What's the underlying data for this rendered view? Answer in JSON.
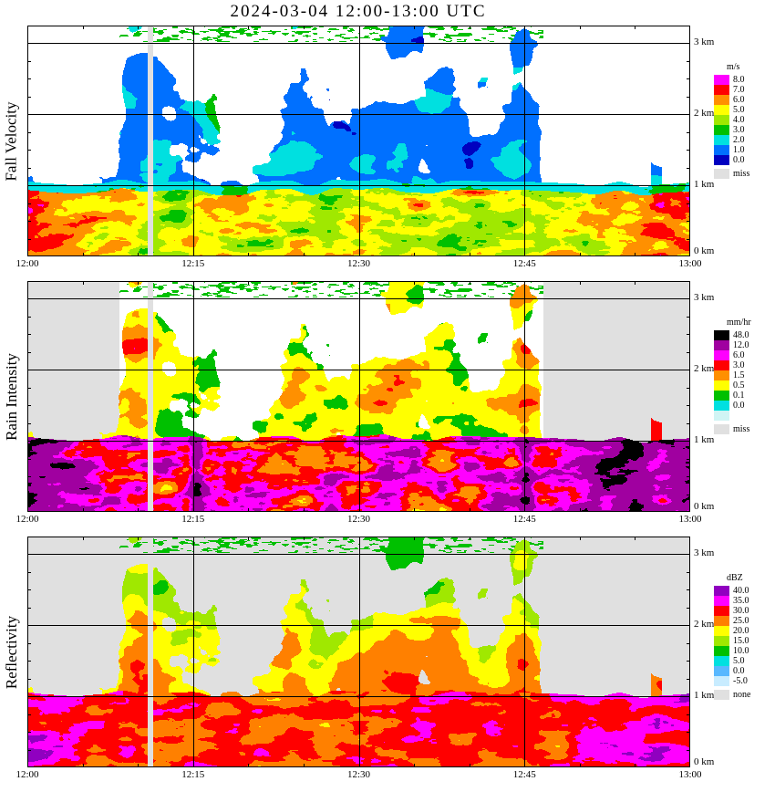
{
  "title": "2024-03-04  12:00-13:00 UTC",
  "x_ticks": [
    "12:00",
    "12:15",
    "12:30",
    "12:45",
    "13:00"
  ],
  "y_ticks": [
    "0 km",
    "1 km",
    "2 km",
    "3 km"
  ],
  "panels": [
    {
      "label": "Fall Velocity",
      "unit": "m/s",
      "legend": [
        {
          "label": "8.0",
          "color": "#ff00ff"
        },
        {
          "label": "7.0",
          "color": "#ff0000"
        },
        {
          "label": "6.0",
          "color": "#ff9000"
        },
        {
          "label": "5.0",
          "color": "#ffff00"
        },
        {
          "label": "4.0",
          "color": "#a0e800"
        },
        {
          "label": "3.0",
          "color": "#00c000"
        },
        {
          "label": "2.0",
          "color": "#00e0e0"
        },
        {
          "label": "1.0",
          "color": "#0070ff"
        },
        {
          "label": "0.0",
          "color": "#0000c0"
        }
      ],
      "missing": {
        "label": "miss",
        "color": "#e0e0e0"
      }
    },
    {
      "label": "Rain Intensity",
      "unit": "mm/hr",
      "legend": [
        {
          "label": "48.0",
          "color": "#000000"
        },
        {
          "label": "12.0",
          "color": "#a000a0"
        },
        {
          "label": "6.0",
          "color": "#ff00ff"
        },
        {
          "label": "3.0",
          "color": "#ff0000"
        },
        {
          "label": "1.5",
          "color": "#ff9000"
        },
        {
          "label": "0.5",
          "color": "#ffff00"
        },
        {
          "label": "0.1",
          "color": "#00c000"
        },
        {
          "label": "0.0",
          "color": "#00e0e0"
        },
        {
          "label": "",
          "color": "#d0f4f4"
        }
      ],
      "missing": {
        "label": "miss",
        "color": "#e0e0e0"
      }
    },
    {
      "label": "Reflectivity",
      "unit": "dBZ",
      "legend": [
        {
          "label": "40.0",
          "color": "#9000c0"
        },
        {
          "label": "35.0",
          "color": "#ff00ff"
        },
        {
          "label": "30.0",
          "color": "#ff0000"
        },
        {
          "label": "25.0",
          "color": "#ff8000"
        },
        {
          "label": "20.0",
          "color": "#ffff00"
        },
        {
          "label": "15.0",
          "color": "#a0e800"
        },
        {
          "label": "10.0",
          "color": "#00c000"
        },
        {
          "label": "5.0",
          "color": "#00e0e0"
        },
        {
          "label": "0.0",
          "color": "#58b8ff"
        },
        {
          "label": "-5.0",
          "color": "#c8ecff"
        }
      ],
      "missing": {
        "label": "none",
        "color": "#e0e0e0"
      }
    }
  ],
  "chart_data": {
    "type": "heatmap",
    "title": "2024-03-04  12:00-13:00 UTC",
    "x_axis": {
      "ticks": [
        "12:00",
        "12:15",
        "12:30",
        "12:45",
        "13:00"
      ],
      "minor_tick_minutes": 5
    },
    "y_axis": {
      "ticks_km": [
        0,
        1,
        2,
        3
      ],
      "range_km": [
        0,
        3.25
      ]
    },
    "panels": [
      {
        "name": "Fall Velocity",
        "unit": "m/s",
        "scale": [
          [
            8,
            "#ff00ff"
          ],
          [
            7,
            "#ff0000"
          ],
          [
            6,
            "#ff9000"
          ],
          [
            5,
            "#ffff00"
          ],
          [
            4,
            "#a0e800"
          ],
          [
            3,
            "#00c000"
          ],
          [
            2,
            "#00e0e0"
          ],
          [
            1,
            "#0070ff"
          ],
          [
            0,
            "#0000c0"
          ]
        ],
        "no_data_color": "#ffffff",
        "missing_color": "#e0e0e0"
      },
      {
        "name": "Rain Intensity",
        "unit": "mm/hr",
        "scale": [
          [
            48,
            "#000000"
          ],
          [
            12,
            "#a000a0"
          ],
          [
            6,
            "#ff00ff"
          ],
          [
            3,
            "#ff0000"
          ],
          [
            1.5,
            "#ff9000"
          ],
          [
            0.5,
            "#ffff00"
          ],
          [
            0.1,
            "#00c000"
          ],
          [
            0.02,
            "#00e0e0"
          ],
          [
            0,
            "#d0f4f4"
          ]
        ],
        "no_data_color": "#ffffff",
        "missing_color": "#e0e0e0"
      },
      {
        "name": "Reflectivity",
        "unit": "dBZ",
        "scale": [
          [
            40,
            "#9000c0"
          ],
          [
            35,
            "#ff00ff"
          ],
          [
            30,
            "#ff0000"
          ],
          [
            25,
            "#ff8000"
          ],
          [
            20,
            "#ffff00"
          ],
          [
            15,
            "#a0e800"
          ],
          [
            10,
            "#00c000"
          ],
          [
            5,
            "#00e0e0"
          ],
          [
            0,
            "#58b8ff"
          ],
          [
            -5,
            "#c8ecff"
          ]
        ],
        "no_data_color": "#e0e0e0",
        "missing_color": "#e0e0e0"
      }
    ],
    "features": {
      "rain_layer_top_km": 1.05,
      "deep_echo_time_frac": [
        0.135,
        0.775
      ],
      "missing_column_frac": [
        0.1805,
        0.1885
      ],
      "late_spike_frac": 0.949,
      "mid_level_warm_patch_frac": 0.315
    }
  }
}
